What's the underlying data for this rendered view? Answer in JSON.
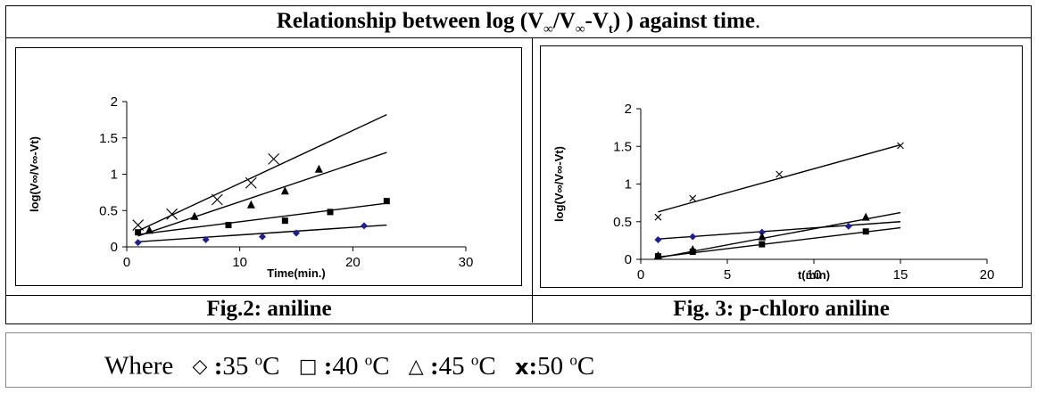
{
  "header": {
    "title_prefix": "Relationship between log (V",
    "sub1": "∞",
    "mid1": "/V",
    "sub2": "∞",
    "mid2": "-V",
    "sub3": "t",
    "title_suffix": ")  ) against time",
    "title_end": "."
  },
  "captions": {
    "left": "Fig.2: aniline",
    "right": "Fig. 3: p-chloro aniline"
  },
  "legend": {
    "where": "Where",
    "entries": [
      {
        "symbol": "◇",
        "label": "35",
        "unit": "C"
      },
      {
        "symbol": "□",
        "label": "40",
        "unit": "C"
      },
      {
        "symbol": "△",
        "label": "45",
        "unit": "C"
      },
      {
        "symbol": "x",
        "label": "50",
        "unit": "C"
      }
    ],
    "degree": "o"
  },
  "chart_data": [
    {
      "type": "scatter",
      "xlabel": "Time(min.)",
      "ylabel": "log(V∞/V∞-Vt)",
      "xlim": [
        0,
        30
      ],
      "ylim": [
        0,
        2
      ],
      "xticks": [
        "0",
        "10",
        "20",
        "30"
      ],
      "yticks": [
        "0",
        "0.5",
        "1",
        "1.5",
        "2"
      ],
      "grid": false,
      "series": [
        {
          "marker": "diamond",
          "color": "#1f1f8f",
          "x": [
            1,
            7,
            12,
            15,
            21
          ],
          "y": [
            0.06,
            0.1,
            0.14,
            0.19,
            0.29
          ],
          "fit": [
            [
              1,
              0.07
            ],
            [
              23,
              0.3
            ]
          ]
        },
        {
          "marker": "square",
          "color": "#000000",
          "x": [
            1,
            9,
            14,
            18,
            23
          ],
          "y": [
            0.2,
            0.3,
            0.36,
            0.48,
            0.63
          ],
          "fit": [
            [
              1,
              0.17
            ],
            [
              23,
              0.6
            ]
          ]
        },
        {
          "marker": "triangle",
          "color": "#000000",
          "x": [
            2,
            6,
            11,
            14,
            17
          ],
          "y": [
            0.23,
            0.42,
            0.58,
            0.77,
            1.07
          ],
          "fit": [
            [
              1,
              0.15
            ],
            [
              23,
              1.3
            ]
          ]
        },
        {
          "marker": "x",
          "color": "#000000",
          "x": [
            1,
            4,
            8,
            11,
            13
          ],
          "y": [
            0.3,
            0.45,
            0.65,
            0.88,
            1.21
          ],
          "fit": [
            [
              1,
              0.22
            ],
            [
              23,
              1.82
            ]
          ]
        }
      ]
    },
    {
      "type": "scatter",
      "xlabel": "t(min)",
      "ylabel": "log(V∞/V∞-Vt)",
      "xlim": [
        0,
        20
      ],
      "ylim": [
        0,
        2
      ],
      "xticks": [
        "0",
        "5",
        "10",
        "15",
        "20"
      ],
      "yticks": [
        "0",
        "0.5",
        "1",
        "1.5",
        "2"
      ],
      "grid": false,
      "series": [
        {
          "marker": "diamond",
          "color": "#1f1f8f",
          "x": [
            1,
            3,
            7,
            12
          ],
          "y": [
            0.26,
            0.3,
            0.36,
            0.44
          ],
          "fit": [
            [
              1,
              0.27
            ],
            [
              15,
              0.5
            ]
          ]
        },
        {
          "marker": "square",
          "color": "#000000",
          "x": [
            1,
            3,
            7,
            13
          ],
          "y": [
            0.04,
            0.1,
            0.2,
            0.37
          ],
          "fit": [
            [
              1,
              0.03
            ],
            [
              15,
              0.42
            ]
          ]
        },
        {
          "marker": "triangle",
          "color": "#000000",
          "x": [
            1,
            3,
            7,
            13
          ],
          "y": [
            0.05,
            0.13,
            0.3,
            0.56
          ],
          "fit": [
            [
              1,
              0.02
            ],
            [
              15,
              0.62
            ]
          ]
        },
        {
          "marker": "x",
          "color": "#000000",
          "x": [
            1,
            3,
            8,
            15
          ],
          "y": [
            0.56,
            0.81,
            1.13,
            1.51
          ],
          "fit": [
            [
              1,
              0.63
            ],
            [
              15,
              1.52
            ]
          ]
        }
      ]
    }
  ]
}
